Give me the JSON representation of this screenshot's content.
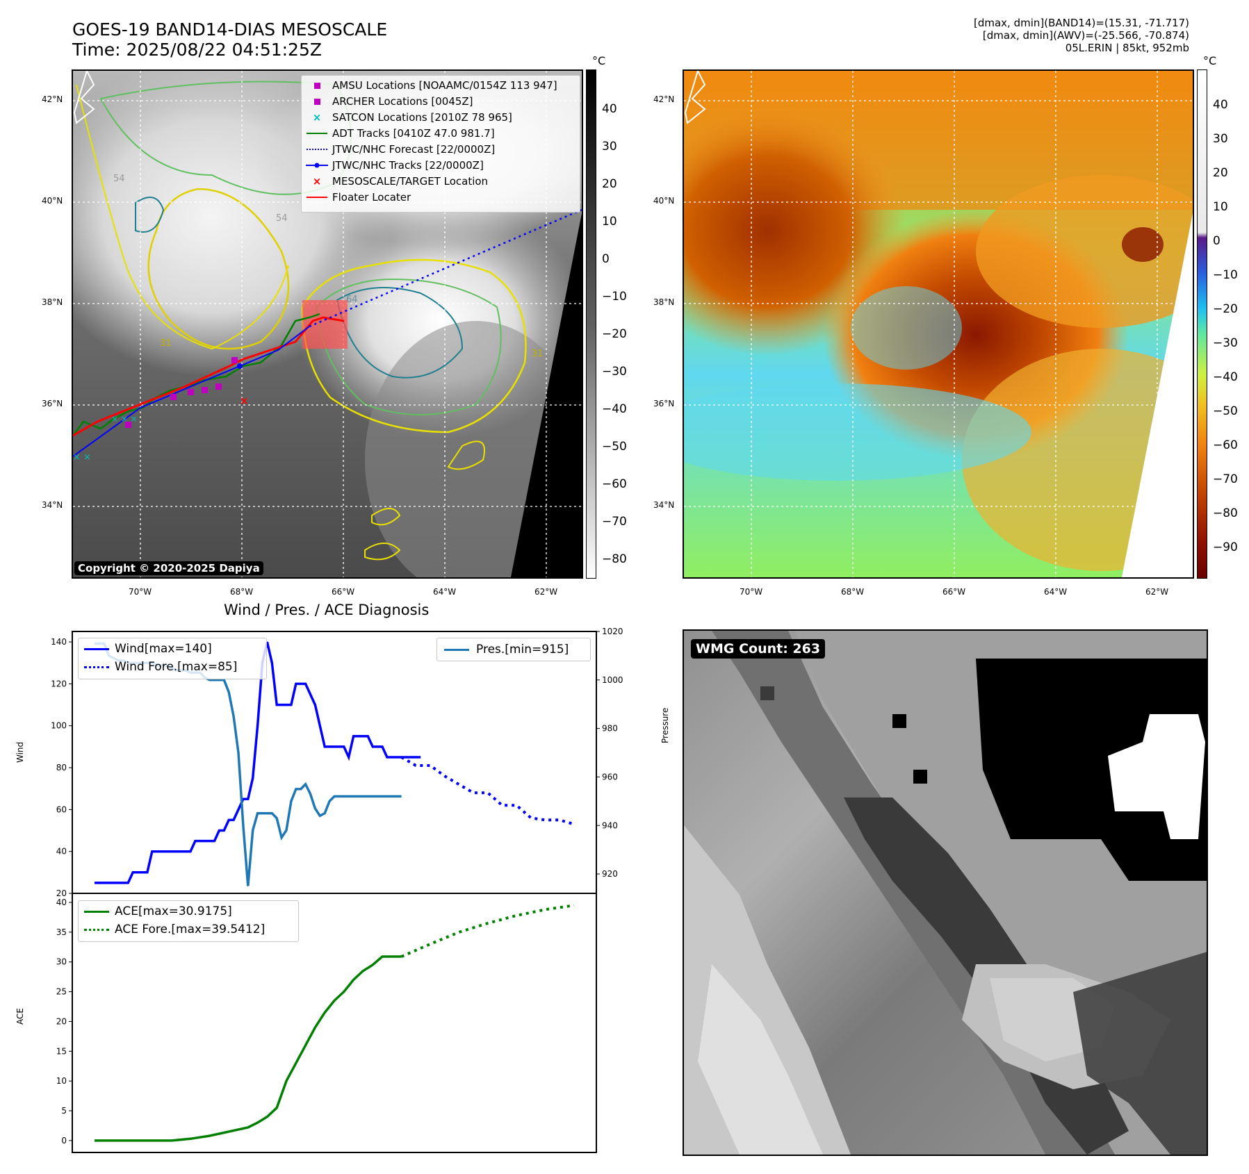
{
  "header": {
    "title": "GOES-19 BAND14-DIAS MESOSCALE",
    "time": "Time: 2025/08/22 04:51:25Z",
    "right_line1": "[dmax, dmin](BAND14)=(15.31, -71.717)",
    "right_line2": "[dmax, dmin](AWV)=(-25.566, -70.874)",
    "right_line3": "05L.ERIN | 85kt, 952mb"
  },
  "map_ticks": {
    "lat": [
      "42°N",
      "40°N",
      "38°N",
      "36°N",
      "34°N"
    ],
    "lon": [
      "70°W",
      "68°W",
      "66°W",
      "64°W",
      "62°W"
    ]
  },
  "ir_panel": {
    "legend": [
      {
        "label": "AMSU Locations [NOAAMC/0154Z 113 947]",
        "marker": "square",
        "color": "#c000c0"
      },
      {
        "label": "ARCHER Locations [0045Z]",
        "marker": "square",
        "color": "#c000c0"
      },
      {
        "label": "SATCON Locations [2010Z 78 965]",
        "marker": "x",
        "color": "#00bcbc"
      },
      {
        "label": "ADT Tracks [0410Z 47.0 981.7]",
        "marker": "line",
        "color": "#008000"
      },
      {
        "label": "JTWC/NHC Forecast [22/0000Z]",
        "marker": "dotted",
        "color": "#0000ff"
      },
      {
        "label": "JTWC/NHC Tracks [22/0000Z]",
        "marker": "line-dot",
        "color": "#0000ff"
      },
      {
        "label": "MESOSCALE/TARGET Location",
        "marker": "x",
        "color": "#ff0000"
      },
      {
        "label": "Floater Locater",
        "marker": "line",
        "color": "#ff0000"
      }
    ],
    "copyright": "Copyright © 2020-2025 Dapiya",
    "contour_labels": [
      "54",
      "54",
      "64",
      "31",
      "31"
    ],
    "colorbar": {
      "unit": "°C",
      "ticks": [
        "40",
        "30",
        "20",
        "10",
        "0",
        "−10",
        "−20",
        "−30",
        "−40",
        "−50",
        "−60",
        "−70",
        "−80"
      ]
    }
  },
  "color_panel": {
    "colorbar": {
      "unit": "°C",
      "ticks": [
        "40",
        "30",
        "20",
        "10",
        "0",
        "−10",
        "−20",
        "−30",
        "−40",
        "−50",
        "−60",
        "−70",
        "−80",
        "−90"
      ]
    }
  },
  "wmg_panel": {
    "badge": "WMG Count: 263"
  },
  "chart_data": [
    {
      "type": "line",
      "title": "Wind / Pres. / ACE Diagnosis",
      "ylabel": "Wind",
      "y2label": "Pressure",
      "ylim": [
        20,
        145
      ],
      "y2lim": [
        912,
        1020
      ],
      "yticks": [
        "140",
        "120",
        "100",
        "80",
        "60",
        "40",
        "20"
      ],
      "y2ticks": [
        "1020",
        "1000",
        "980",
        "960",
        "940",
        "920"
      ],
      "series": [
        {
          "name": "Wind[max=140]",
          "color": "#0000ff",
          "style": "solid",
          "axis": "left",
          "x": [
            0,
            1,
            2,
            3,
            4,
            5,
            6,
            7,
            8,
            9,
            10,
            11,
            12,
            13,
            14,
            15,
            16,
            17,
            18,
            19,
            20,
            21,
            22,
            23,
            24,
            25,
            26,
            27,
            28,
            29,
            30,
            31,
            32,
            33,
            34,
            35,
            36,
            37,
            38,
            39,
            40,
            41,
            42,
            43,
            44,
            45,
            46,
            47,
            48,
            49,
            50,
            51,
            52,
            53,
            54,
            55,
            56,
            57,
            58,
            59,
            60,
            61,
            62,
            63,
            64,
            65,
            66,
            67,
            68
          ],
          "values": [
            25,
            25,
            25,
            25,
            25,
            25,
            25,
            25,
            30,
            30,
            30,
            30,
            40,
            40,
            40,
            40,
            40,
            40,
            40,
            40,
            40,
            45,
            45,
            45,
            45,
            45,
            50,
            50,
            55,
            55,
            60,
            65,
            65,
            75,
            100,
            130,
            140,
            130,
            110,
            110,
            110,
            110,
            120,
            120,
            120,
            115,
            110,
            100,
            90,
            90,
            90,
            90,
            90,
            85,
            95,
            95,
            95,
            95,
            90,
            90,
            90,
            85,
            85,
            85,
            85,
            85,
            85,
            85,
            85
          ]
        },
        {
          "name": "Wind Fore.[max=85]",
          "color": "#0000ff",
          "style": "dotted",
          "axis": "left",
          "x": [
            64,
            67,
            70,
            73,
            76,
            79,
            82,
            85,
            88,
            91,
            94,
            97,
            100
          ],
          "values": [
            85,
            81,
            81,
            76,
            72,
            68,
            68,
            62,
            62,
            56,
            55,
            55,
            53
          ]
        },
        {
          "name": "Pres.[min=915]",
          "color": "#1f77b4",
          "style": "solid",
          "axis": "right",
          "x": [
            0,
            1,
            2,
            3,
            4,
            5,
            6,
            7,
            8,
            9,
            10,
            11,
            12,
            13,
            14,
            15,
            16,
            17,
            18,
            19,
            20,
            21,
            22,
            23,
            24,
            25,
            26,
            27,
            28,
            29,
            30,
            31,
            32,
            33,
            34,
            35,
            36,
            37,
            38,
            39,
            40,
            41,
            42,
            43,
            44,
            45,
            46,
            47,
            48,
            49,
            50,
            51,
            52,
            53,
            54,
            55,
            56,
            57,
            58,
            59,
            60,
            61,
            62,
            63,
            64
          ],
          "values": [
            1015,
            1015,
            1015,
            1010,
            1009,
            1008,
            1008,
            1007,
            1007,
            1007,
            1007,
            1007,
            1007,
            1006,
            1006,
            1006,
            1005,
            1004,
            1004,
            1004,
            1003,
            1003,
            1003,
            1001,
            1000,
            1000,
            1000,
            1000,
            995,
            985,
            970,
            940,
            915,
            938,
            945,
            945,
            945,
            945,
            943,
            935,
            938,
            950,
            955,
            955,
            957,
            953,
            947,
            944,
            945,
            950,
            952,
            952,
            952,
            952,
            952,
            952,
            952,
            952,
            952,
            952,
            952,
            952,
            952,
            952,
            952
          ]
        }
      ]
    },
    {
      "type": "line",
      "ylabel": "ACE",
      "ylim": [
        -2,
        40
      ],
      "yticks": [
        "40",
        "35",
        "30",
        "25",
        "20",
        "15",
        "10",
        "5",
        "0"
      ],
      "series": [
        {
          "name": "ACE[max=30.9175]",
          "color": "#008000",
          "style": "solid",
          "x": [
            0,
            4,
            8,
            12,
            16,
            20,
            24,
            28,
            32,
            34,
            36,
            38,
            40,
            42,
            44,
            46,
            48,
            50,
            52,
            54,
            56,
            58,
            60,
            62,
            64
          ],
          "values": [
            0,
            0,
            0,
            0,
            0,
            0.3,
            0.8,
            1.5,
            2.2,
            3,
            4,
            5.5,
            10,
            13,
            16,
            19,
            21.5,
            23.5,
            25,
            27,
            28.5,
            29.5,
            30.9,
            30.9,
            30.9
          ]
        },
        {
          "name": "ACE Fore.[max=39.5412]",
          "color": "#008000",
          "style": "dotted",
          "x": [
            64,
            70,
            76,
            82,
            88,
            94,
            100
          ],
          "values": [
            30.9,
            33,
            35,
            36.5,
            37.8,
            38.8,
            39.5
          ]
        }
      ]
    }
  ]
}
